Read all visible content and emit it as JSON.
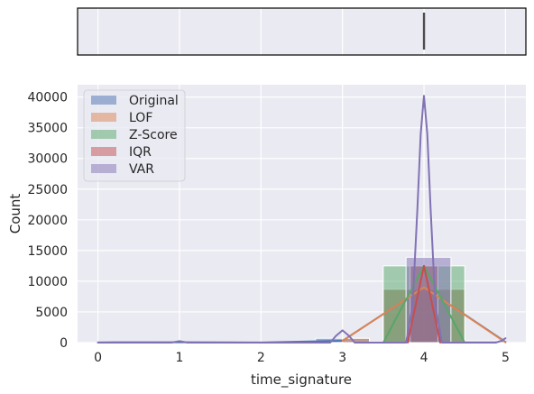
{
  "chart_data": [
    {
      "type": "box",
      "panel": "top",
      "xlim": [
        -0.25,
        5.25
      ],
      "grid": true,
      "box": {
        "q1": 4,
        "median": 4,
        "q3": 4,
        "whisker_low": 4,
        "whisker_high": 4
      },
      "color": "#4d4d4d"
    },
    {
      "type": "histogram",
      "panel": "bottom",
      "xlabel": "time_signature",
      "ylabel": "Count",
      "xlim": [
        -0.25,
        5.25
      ],
      "ylim": [
        0,
        42000
      ],
      "xticks": [
        "0",
        "1",
        "2",
        "3",
        "4",
        "5"
      ],
      "yticks": [
        "0",
        "5000",
        "10000",
        "15000",
        "20000",
        "25000",
        "30000",
        "35000",
        "40000"
      ],
      "grid": true,
      "legend_position": "top-left",
      "series": [
        {
          "name": "Original",
          "color": "#4c72b0",
          "bins": [
            {
              "x0": 0,
              "x1": 0.33,
              "count": 150
            },
            {
              "x0": 0.67,
              "x1": 1.0,
              "count": 150
            },
            {
              "x0": 2.67,
              "x1": 3.33,
              "count": 700
            },
            {
              "x0": 3.5,
              "x1": 4.5,
              "count": 8700
            },
            {
              "x0": 4.5,
              "x1": 5.0,
              "count": 300
            }
          ],
          "kde": [
            [
              0,
              40
            ],
            [
              1,
              60
            ],
            [
              2,
              20
            ],
            [
              3,
              300
            ],
            [
              4,
              9000
            ],
            [
              5,
              120
            ]
          ]
        },
        {
          "name": "LOF",
          "color": "#dd8452",
          "bins": [
            {
              "x0": 3.5,
              "x1": 4.5,
              "count": 8700
            },
            {
              "x0": 3.0,
              "x1": 3.33,
              "count": 700
            }
          ],
          "kde": [
            [
              3,
              300
            ],
            [
              4,
              9000
            ],
            [
              5,
              50
            ]
          ]
        },
        {
          "name": "Z-Score",
          "color": "#55a868",
          "bins": [
            {
              "x0": 3.5,
              "x1": 4.5,
              "count": 12500
            }
          ],
          "kde": [
            [
              3.5,
              0
            ],
            [
              4,
              12500
            ],
            [
              4.5,
              0
            ]
          ]
        },
        {
          "name": "IQR",
          "color": "#c44e52",
          "bins": [
            {
              "x0": 3.83,
              "x1": 4.17,
              "count": 12500
            }
          ],
          "kde": [
            [
              3.8,
              0
            ],
            [
              4,
              12500
            ],
            [
              4.2,
              0
            ]
          ]
        },
        {
          "name": "VAR",
          "color": "#8172b3",
          "bins": [
            {
              "x0": 3.78,
              "x1": 4.33,
              "count": 13900
            }
          ],
          "kde": [
            [
              0,
              0
            ],
            [
              0.9,
              0
            ],
            [
              1,
              250
            ],
            [
              1.1,
              0
            ],
            [
              2.85,
              0
            ],
            [
              2.92,
              1100
            ],
            [
              3,
              2000
            ],
            [
              3.08,
              1100
            ],
            [
              3.15,
              0
            ],
            [
              3.78,
              0
            ],
            [
              3.86,
              6000
            ],
            [
              3.92,
              22000
            ],
            [
              3.96,
              34000
            ],
            [
              4,
              40200
            ],
            [
              4.04,
              34000
            ],
            [
              4.08,
              22000
            ],
            [
              4.14,
              6000
            ],
            [
              4.22,
              0
            ],
            [
              4.88,
              0
            ],
            [
              4.95,
              300
            ],
            [
              5,
              700
            ]
          ]
        }
      ]
    }
  ]
}
